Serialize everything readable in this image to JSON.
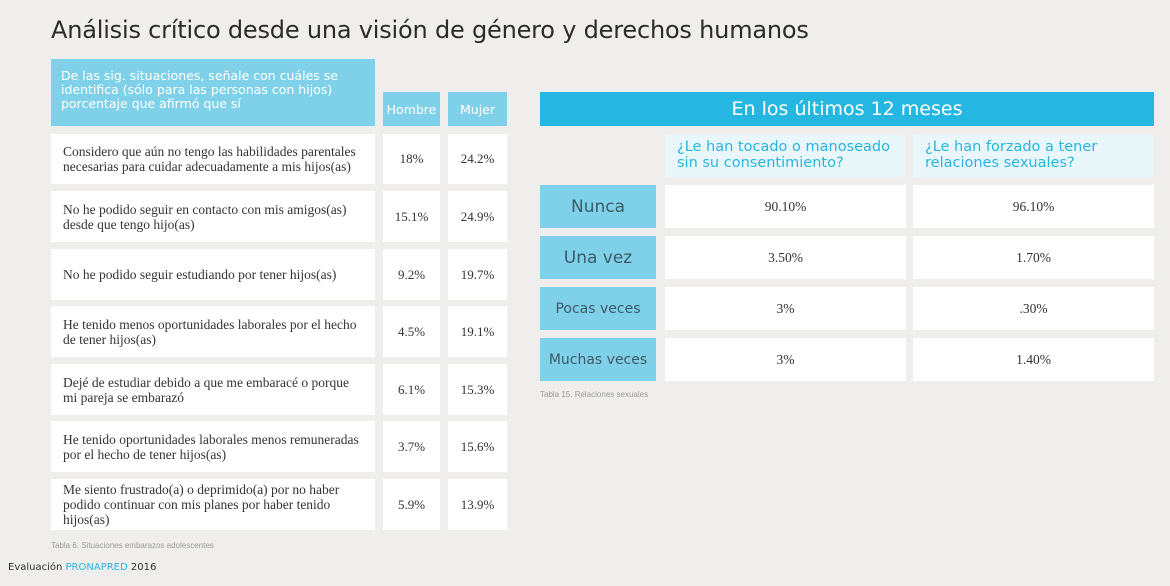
{
  "title": "Análisis crítico desde una visión de género y derechos humanos",
  "left_table": {
    "question_header": "De las sig. situaciones, señale con cuáles se identifica (sólo para las personas con hijos) porcentaje que afirmó que sí",
    "col_hombre": "Hombre",
    "col_mujer": "Mujer",
    "rows": [
      {
        "text": "Considero que aún no tengo las habilidades parentales necesarias para cuidar adecuadamente a mis hijos(as)",
        "hombre": "18%",
        "mujer": "24.2%"
      },
      {
        "text": "No he podido seguir en contacto con mis amigos(as) desde que tengo hijo(as)",
        "hombre": "15.1%",
        "mujer": "24.9%"
      },
      {
        "text": "No he podido seguir estudiando por tener hijos(as)",
        "hombre": "9.2%",
        "mujer": "19.7%"
      },
      {
        "text": "He tenido menos oportunidades laborales por el hecho de tener hijos(as)",
        "hombre": "4.5%",
        "mujer": "19.1%"
      },
      {
        "text": "Dejé de estudiar debido a que me embaracé o porque mi pareja se embarazó",
        "hombre": "6.1%",
        "mujer": "15.3%"
      },
      {
        "text": "He tenido oportunidades laborales menos remuneradas por el hecho de tener hijos(as)",
        "hombre": "3.7%",
        "mujer": "15.6%"
      },
      {
        "text": "Me siento frustrado(a) o deprimido(a) por no haber podido continuar con mis planes por haber tenido hijos(as)",
        "hombre": "5.9%",
        "mujer": "13.9%"
      }
    ],
    "caption": "Tabla 6. Situaciones embarazos adolescentes"
  },
  "right_table": {
    "header": "En los últimos 12 meses",
    "col1": "¿Le han tocado o manoseado sin su consentimiento?",
    "col2": "¿Le han forzado a tener relaciones sexuales?",
    "rows": [
      {
        "label": "Nunca",
        "v1": "90.10%",
        "v2": "96.10%"
      },
      {
        "label": "Una vez",
        "v1": "3.50%",
        "v2": "1.70%"
      },
      {
        "label": "Pocas veces",
        "v1": "3%",
        "v2": ".30%"
      },
      {
        "label": "Muchas veces",
        "v1": "3%",
        "v2": "1.40%"
      }
    ],
    "caption": "Tabla 15. Relaciones sexuales"
  },
  "footer": {
    "prefix": "Evaluación",
    "brand": "PRONAPRED",
    "year": "2016"
  },
  "colors": {
    "accent": "#26b6e2",
    "light_accent": "#7fd1ea",
    "background": "#efeeec"
  }
}
